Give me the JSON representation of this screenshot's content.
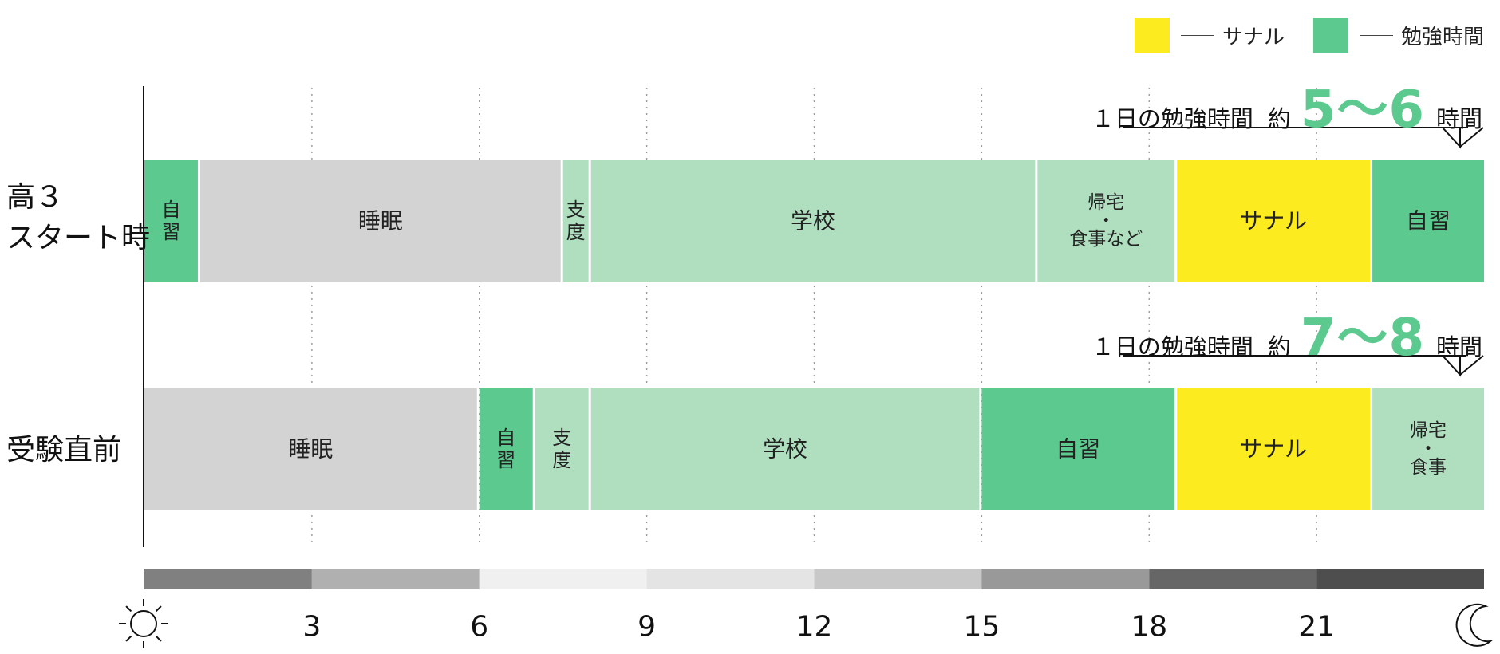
{
  "chart_data": {
    "type": "bar",
    "orientation": "horizontal-stacked-timeline",
    "x_axis": {
      "range": [
        0,
        24
      ],
      "tick_labels": [
        "3",
        "6",
        "9",
        "12",
        "15",
        "18",
        "21"
      ],
      "ticks": [
        3,
        6,
        9,
        12,
        15,
        18,
        21
      ],
      "grid": "dotted",
      "start_icon": "sun-icon",
      "end_icon": "moon-icon"
    },
    "legend": {
      "placement": "top-right",
      "items": [
        {
          "label": "サナル",
          "color": "#fbeb1f"
        },
        {
          "label": "勉強時間",
          "color": "#5cc98f"
        }
      ]
    },
    "rows": [
      {
        "label_lines": [
          "高３",
          "スタート時"
        ],
        "summary": {
          "text": "１日の勉強時間",
          "approx": "約",
          "value": "5〜6",
          "unit": "時間"
        },
        "segments": [
          {
            "start": 0,
            "end": 1,
            "label": "自習",
            "kind": "study",
            "vertical": true
          },
          {
            "start": 1,
            "end": 7.5,
            "label": "睡眠",
            "kind": "sleep"
          },
          {
            "start": 7.5,
            "end": 8,
            "label": "支度",
            "kind": "other",
            "vertical": true
          },
          {
            "start": 8,
            "end": 16,
            "label": "学校",
            "kind": "other"
          },
          {
            "start": 16,
            "end": 18.5,
            "label": "帰宅\n・\n食事など",
            "kind": "other"
          },
          {
            "start": 18.5,
            "end": 22,
            "label": "サナル",
            "kind": "sanaru"
          },
          {
            "start": 22,
            "end": 24,
            "label": "自習",
            "kind": "study"
          }
        ]
      },
      {
        "label_lines": [
          "受験直前"
        ],
        "summary": {
          "text": "１日の勉強時間",
          "approx": "約",
          "value": "7〜8",
          "unit": "時間"
        },
        "segments": [
          {
            "start": 0,
            "end": 6,
            "label": "睡眠",
            "kind": "sleep"
          },
          {
            "start": 6,
            "end": 7,
            "label": "自習",
            "kind": "study",
            "vertical": true
          },
          {
            "start": 7,
            "end": 8,
            "label": "支度",
            "kind": "other",
            "vertical": true
          },
          {
            "start": 8,
            "end": 15,
            "label": "学校",
            "kind": "other"
          },
          {
            "start": 15,
            "end": 18.5,
            "label": "自習",
            "kind": "study"
          },
          {
            "start": 18.5,
            "end": 22,
            "label": "サナル",
            "kind": "sanaru"
          },
          {
            "start": 22,
            "end": 24,
            "label": "帰宅\n・\n食事",
            "kind": "other"
          }
        ]
      }
    ],
    "daylight_band": {
      "segments": [
        {
          "start": 0,
          "end": 3,
          "color": "#808080"
        },
        {
          "start": 3,
          "end": 6,
          "color": "#b0b0b0"
        },
        {
          "start": 6,
          "end": 9,
          "color": "#f0f0f0"
        },
        {
          "start": 9,
          "end": 12,
          "color": "#e4e4e4"
        },
        {
          "start": 12,
          "end": 15,
          "color": "#c8c8c8"
        },
        {
          "start": 15,
          "end": 18,
          "color": "#999999"
        },
        {
          "start": 18,
          "end": 21,
          "color": "#666666"
        },
        {
          "start": 21,
          "end": 24,
          "color": "#4e4e4e"
        }
      ]
    },
    "colors": {
      "study": "#5cc98f",
      "sleep": "#d3d3d3",
      "other": "#b0dfc0",
      "sanaru": "#fbeb1f"
    }
  }
}
